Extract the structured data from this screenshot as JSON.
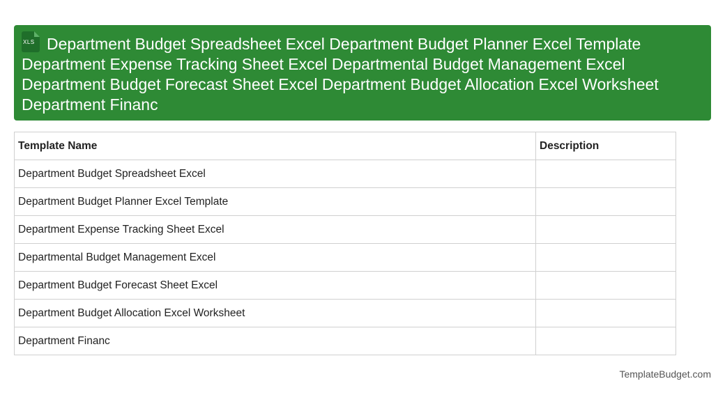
{
  "header": {
    "icon_label": "XLS",
    "title": "Department Budget Spreadsheet Excel Department Budget Planner Excel Template Department Expense Tracking Sheet Excel Departmental Budget Management Excel Department Budget Forecast Sheet Excel Department Budget Allocation Excel Worksheet Department Financ"
  },
  "table": {
    "headers": [
      "Template Name",
      "Description"
    ],
    "rows": [
      "Department Budget Spreadsheet Excel",
      "Department Budget Planner Excel Template",
      "Department Expense Tracking Sheet Excel",
      "Departmental Budget Management Excel",
      "Department Budget Forecast Sheet Excel",
      "Department Budget Allocation Excel Worksheet",
      "Department Financ"
    ]
  },
  "footer": {
    "site": "TemplateBudget.com"
  }
}
